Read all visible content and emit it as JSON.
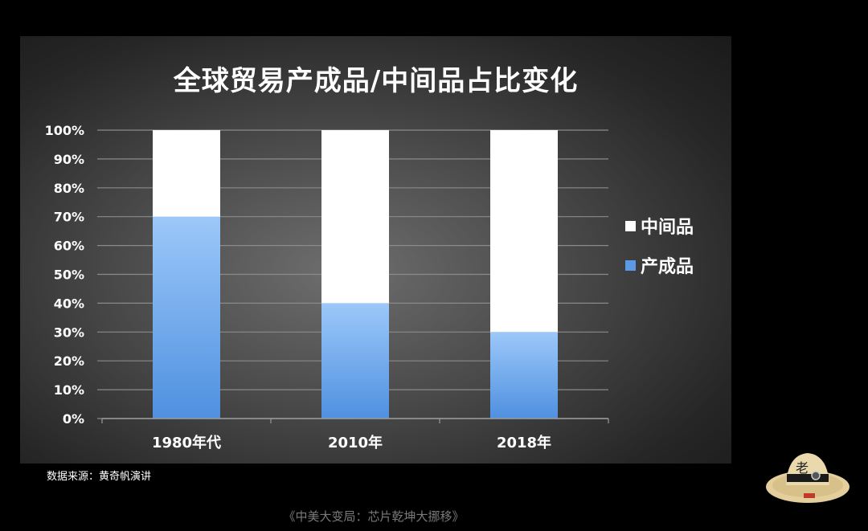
{
  "slide": {
    "source_note": "数据来源：黄奇帆演讲"
  },
  "caption": "《中美大变局：芯片乾坤大挪移》",
  "watermark": {
    "text": "老",
    "icon": "straw-hat-logo-icon"
  },
  "colors": {
    "background": "#000000",
    "intermediate": "#ffffff",
    "product": "#5b9be6",
    "product_light": "#8fc0f7",
    "grid": "#8a8a8a"
  },
  "chart_data": {
    "type": "bar",
    "stacked": true,
    "title": "全球贸易产成品/中间品占比变化",
    "xlabel": "",
    "ylabel": "",
    "categories": [
      "1980年代",
      "2010年",
      "2018年"
    ],
    "series": [
      {
        "name": "产成品",
        "values": [
          70,
          40,
          30
        ]
      },
      {
        "name": "中间品",
        "values": [
          30,
          60,
          70
        ]
      }
    ],
    "ylim": [
      0,
      100
    ],
    "yticks": [
      "0%",
      "10%",
      "20%",
      "30%",
      "40%",
      "50%",
      "60%",
      "70%",
      "80%",
      "90%",
      "100%"
    ],
    "grid": true,
    "legend": [
      "中间品",
      "产成品"
    ],
    "legend_position": "right"
  }
}
